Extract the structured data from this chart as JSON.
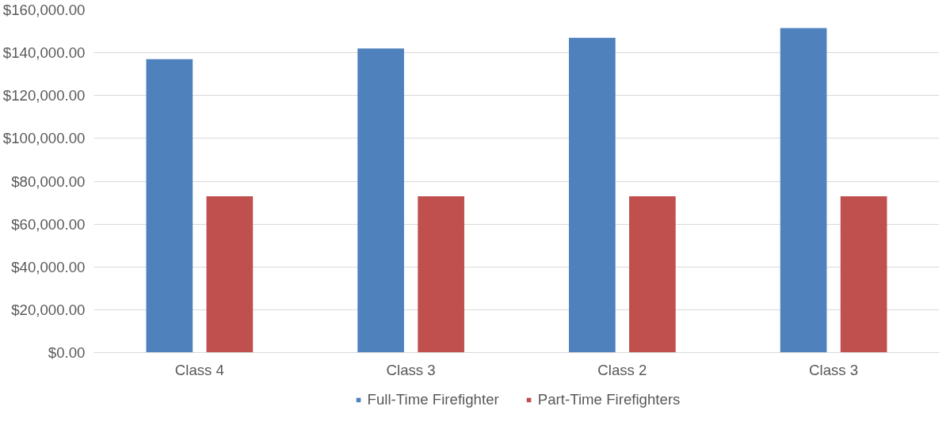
{
  "chart_data": {
    "type": "bar",
    "categories": [
      "Class 4",
      "Class 3",
      "Class 2",
      "Class 3"
    ],
    "series": [
      {
        "name": "Full-Time Firefighter",
        "color": "#4f81bd",
        "values": [
          137000,
          142000,
          147000,
          151500
        ]
      },
      {
        "name": "Part-Time Firefighters",
        "color": "#c0504d",
        "values": [
          73000,
          73000,
          73000,
          73000
        ]
      }
    ],
    "ylim": [
      0,
      160000
    ],
    "yticks": [
      {
        "value": 0,
        "label": "$0.00"
      },
      {
        "value": 20000,
        "label": "$20,000.00"
      },
      {
        "value": 40000,
        "label": "$40,000.00"
      },
      {
        "value": 60000,
        "label": "$60,000.00"
      },
      {
        "value": 80000,
        "label": "$80,000.00"
      },
      {
        "value": 100000,
        "label": "$100,000.00"
      },
      {
        "value": 120000,
        "label": "$120,000.00"
      },
      {
        "value": 140000,
        "label": "$140,000.00"
      },
      {
        "value": 160000,
        "label": "$160,000.00"
      }
    ],
    "grid": "y",
    "legend": "bottom"
  }
}
